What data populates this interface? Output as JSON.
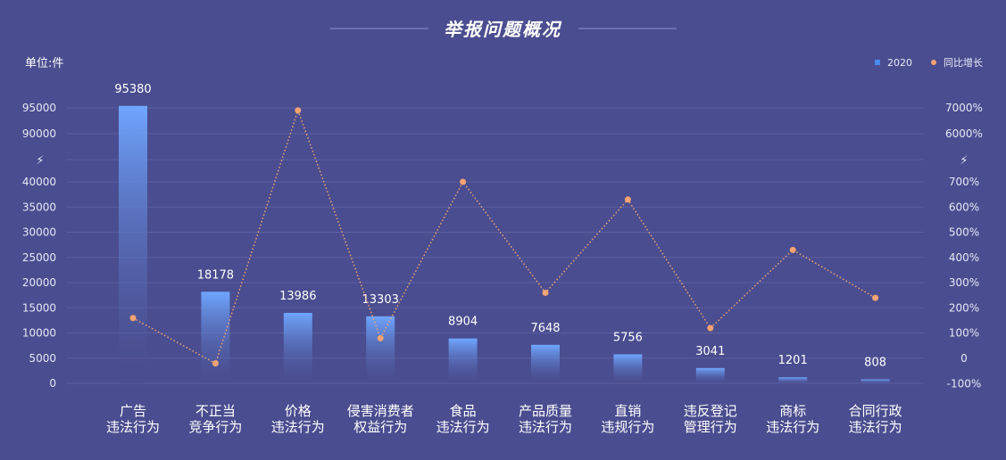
{
  "chart_data": {
    "type": "bar",
    "title": "举报问题概况",
    "unit_label": "单位:件",
    "categories": [
      [
        "广告",
        "违法行为"
      ],
      [
        "不正当",
        "竞争行为"
      ],
      [
        "价格",
        "违法行为"
      ],
      [
        "侵害消费者",
        "权益行为"
      ],
      [
        "食品",
        "违法行为"
      ],
      [
        "产品质量",
        "违法行为"
      ],
      [
        "直销",
        "违规行为"
      ],
      [
        "违反登记",
        "管理行为"
      ],
      [
        "商标",
        "违法行为"
      ],
      [
        "合同行政",
        "违法行为"
      ]
    ],
    "series": [
      {
        "name": "2020",
        "type": "bar",
        "axis": "left",
        "values": [
          95380,
          18178,
          13986,
          13303,
          8904,
          7648,
          5756,
          3041,
          1201,
          808
        ]
      },
      {
        "name": "同比增长",
        "type": "line",
        "axis": "right",
        "unit": "%",
        "values": [
          160,
          -20,
          6900,
          80,
          705,
          260,
          630,
          120,
          430,
          240
        ]
      }
    ],
    "left_axis": {
      "lower_ticks": [
        0,
        5000,
        10000,
        15000,
        20000,
        25000,
        30000,
        35000,
        40000
      ],
      "upper_ticks": [
        90000,
        95000
      ],
      "break_symbol": "⚡"
    },
    "right_axis": {
      "lower_ticks": [
        "-100%",
        "0",
        "100%",
        "200%",
        "300%",
        "400%",
        "500%",
        "600%",
        "700%"
      ],
      "upper_ticks": [
        "6000%",
        "7000%"
      ],
      "break_symbol": "⚡"
    },
    "colors": {
      "background": "#4a4d8f",
      "bar_top": "#6fa6ff",
      "bar_bottom": "#4a4d8f",
      "line": "#f4a373",
      "legend_bar": "#4a8cf0",
      "grid": "#5c5fa0"
    },
    "legend_position": "top-right",
    "grid": true
  }
}
